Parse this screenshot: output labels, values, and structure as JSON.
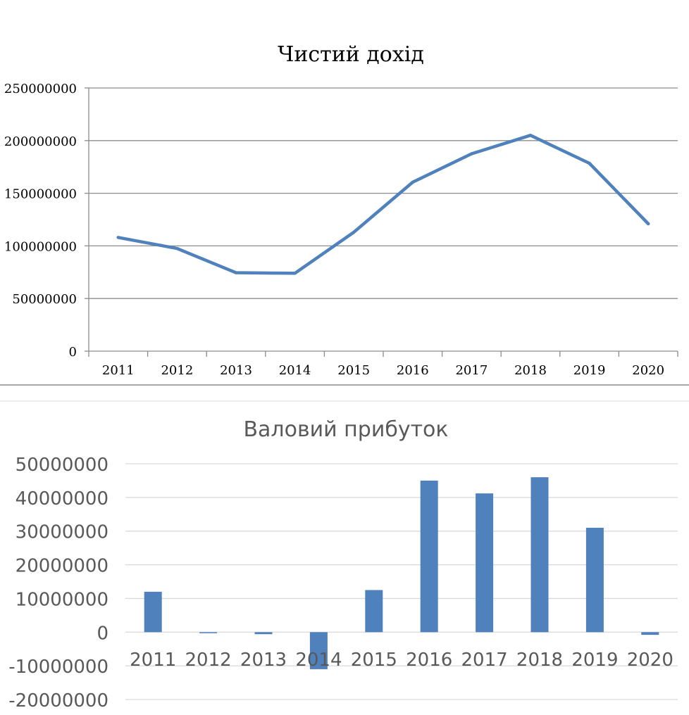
{
  "chart_data": [
    {
      "type": "line",
      "title": "Чистий дохід",
      "categories": [
        "2011",
        "2012",
        "2013",
        "2014",
        "2015",
        "2016",
        "2017",
        "2018",
        "2019",
        "2020"
      ],
      "values": [
        108000000,
        97500000,
        74500000,
        74000000,
        113000000,
        160500000,
        187500000,
        205000000,
        178500000,
        121000000
      ],
      "yticks": [
        "250000000",
        "200000000",
        "150000000",
        "100000000",
        "50000000",
        "0"
      ],
      "ylim": [
        0,
        250000000
      ],
      "grid": true,
      "colors": {
        "line": "#4f81bd",
        "grid": "#8c8c8c"
      }
    },
    {
      "type": "bar",
      "title": "Валовий прибуток",
      "categories": [
        "2011",
        "2012",
        "2013",
        "2014",
        "2015",
        "2016",
        "2017",
        "2018",
        "2019",
        "2020"
      ],
      "values": [
        12000000,
        -300000,
        -600000,
        -11000000,
        12500000,
        45000000,
        41200000,
        46000000,
        31000000,
        -800000
      ],
      "yticks": [
        "50000000",
        "40000000",
        "30000000",
        "20000000",
        "10000000",
        "0",
        "-10000000",
        "-20000000"
      ],
      "ylim": [
        -20000000,
        50000000
      ],
      "grid": true,
      "colors": {
        "bar": "#4f81bd",
        "grid": "#d9d9d9"
      }
    }
  ]
}
